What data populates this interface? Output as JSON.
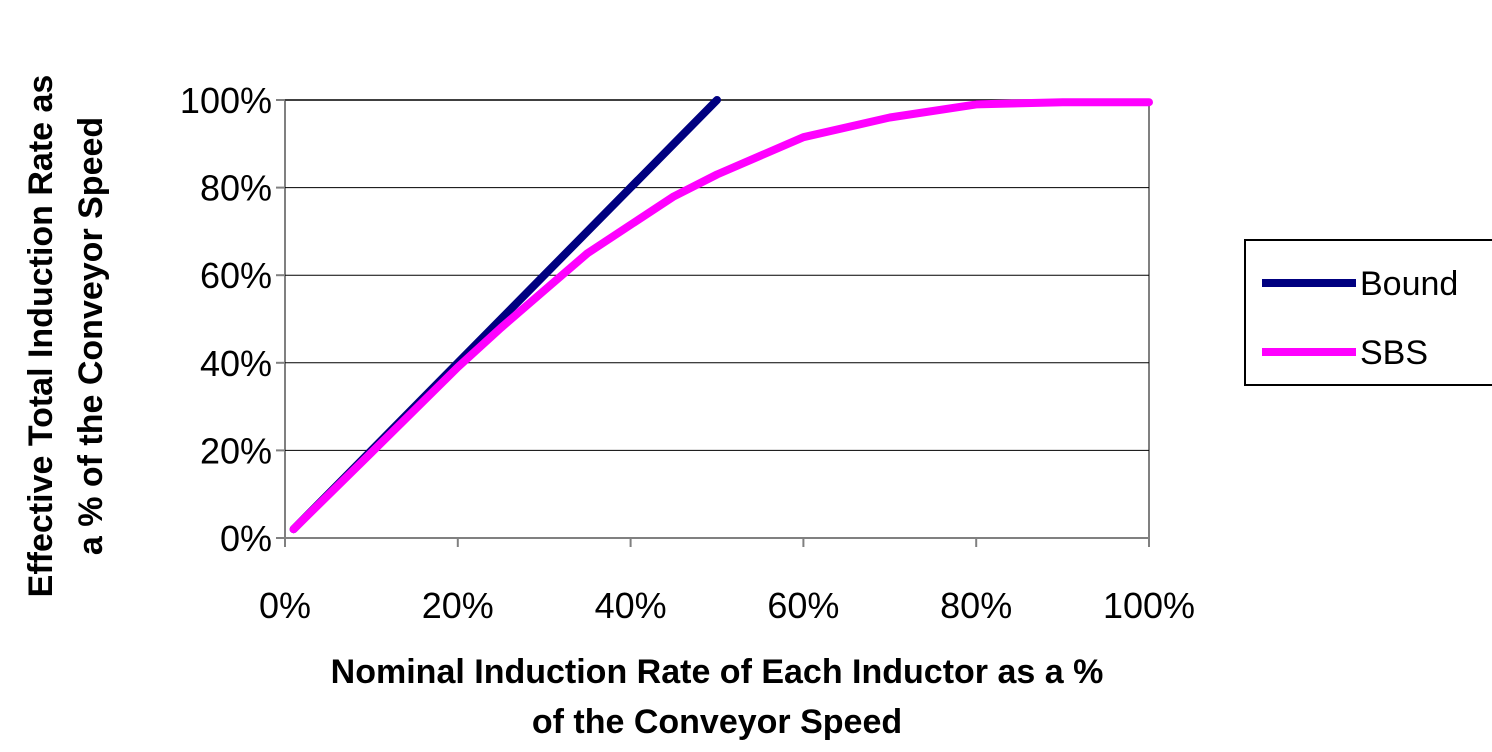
{
  "chart_data": {
    "type": "line",
    "xlabel_lines": [
      "Nominal Induction Rate of Each Inductor as a %",
      "of the Conveyor Speed"
    ],
    "ylabel_lines": [
      "Effective Total Induction Rate as",
      "a % of the Conveyor Speed"
    ],
    "xlim": [
      0,
      100
    ],
    "ylim": [
      0,
      100
    ],
    "x_ticks": [
      0,
      20,
      40,
      60,
      80,
      100
    ],
    "y_ticks": [
      0,
      20,
      40,
      60,
      80,
      100
    ],
    "x_tick_labels": [
      "0%",
      "20%",
      "40%",
      "60%",
      "80%",
      "100%"
    ],
    "y_tick_labels": [
      "0%",
      "20%",
      "40%",
      "60%",
      "80%",
      "100%"
    ],
    "grid": "horizontal",
    "legend_position": "right",
    "series": [
      {
        "name": "Bound",
        "color": "#000080",
        "x": [
          1,
          10,
          20,
          30,
          40,
          45,
          50
        ],
        "y": [
          2,
          20,
          40,
          60,
          80,
          90,
          100
        ]
      },
      {
        "name": "SBS",
        "color": "#FF00FF",
        "x": [
          1,
          10,
          20,
          25,
          30,
          35,
          40,
          45,
          50,
          60,
          70,
          80,
          90,
          100
        ],
        "y": [
          2,
          19.5,
          39,
          48,
          56.5,
          65,
          71.5,
          78,
          83,
          91.5,
          96,
          99,
          99.5,
          99.5
        ]
      }
    ]
  }
}
